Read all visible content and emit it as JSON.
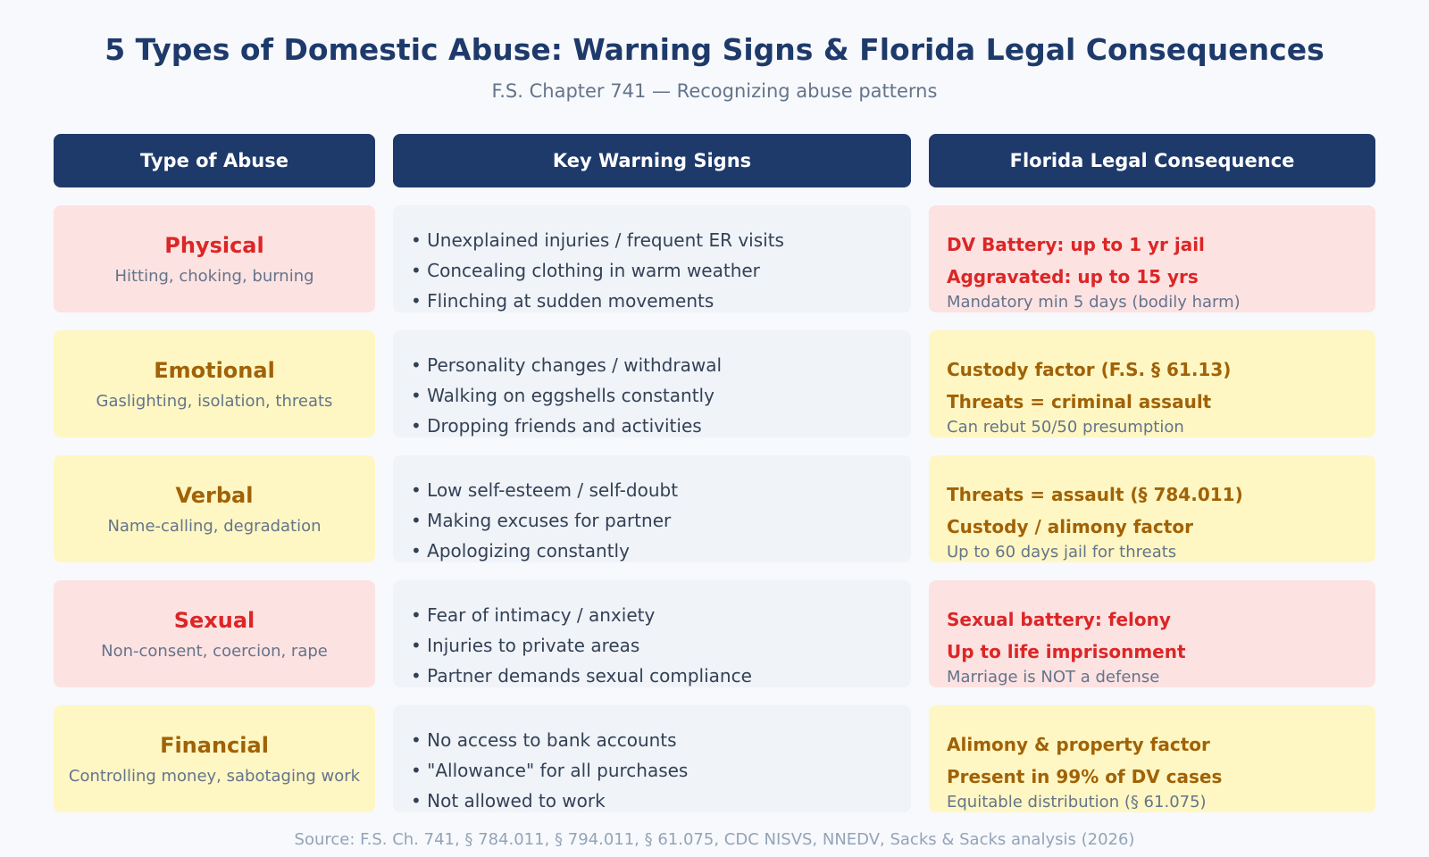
{
  "title": "5 Types of Domestic Abuse: Warning Signs & Florida Legal Consequences",
  "subtitle": "F.S. Chapter 741 — Recognizing abuse patterns",
  "table": {
    "headers": [
      "Type of Abuse",
      "Key Warning Signs",
      "Florida Legal Consequence"
    ],
    "rows": [
      {
        "type": "Physical",
        "description": "Hitting, choking, burning",
        "color": "#dc2626",
        "background": "#fde2e2",
        "signs": [
          "Unexplained injuries / frequent ER visits",
          "Concealing clothing in warm weather",
          "Flinching at sudden movements"
        ],
        "consequences": [
          "DV Battery: up to 1 yr jail",
          "Aggravated: up to 15 yrs"
        ],
        "note": "Mandatory min 5 days (bodily harm)"
      },
      {
        "type": "Emotional",
        "description": "Gaslighting, isolation, threats",
        "color": "#a16207",
        "background": "#fef7c3",
        "signs": [
          "Personality changes / withdrawal",
          "Walking on eggshells constantly",
          "Dropping friends and activities"
        ],
        "consequences": [
          "Custody factor (F.S. § 61.13)",
          "Threats = criminal assault"
        ],
        "note": "Can rebut 50/50 presumption"
      },
      {
        "type": "Verbal",
        "description": "Name-calling, degradation",
        "color": "#a16207",
        "background": "#fef7c3",
        "signs": [
          "Low self-esteem / self-doubt",
          "Making excuses for partner",
          "Apologizing constantly"
        ],
        "consequences": [
          "Threats = assault (§ 784.011)",
          "Custody / alimony factor"
        ],
        "note": "Up to 60 days jail for threats"
      },
      {
        "type": "Sexual",
        "description": "Non-consent, coercion, rape",
        "color": "#dc2626",
        "background": "#fde2e2",
        "signs": [
          "Fear of intimacy / anxiety",
          "Injuries to private areas",
          "Partner demands sexual compliance"
        ],
        "consequences": [
          "Sexual battery: felony",
          "Up to life imprisonment"
        ],
        "note": "Marriage is NOT a defense"
      },
      {
        "type": "Financial",
        "description": "Controlling money, sabotaging work",
        "color": "#a16207",
        "background": "#fef7c3",
        "signs": [
          "No access to bank accounts",
          "\"Allowance\" for all purchases",
          "Not allowed to work"
        ],
        "consequences": [
          "Alimony & property factor",
          "Present in 99% of DV cases"
        ],
        "note": "Equitable distribution (§ 61.075)"
      }
    ]
  },
  "source": "Source: F.S. Ch. 741, § 784.011, § 794.011, § 61.075, CDC NISVS, NNEDV, Sacks & Sacks analysis (2026)"
}
